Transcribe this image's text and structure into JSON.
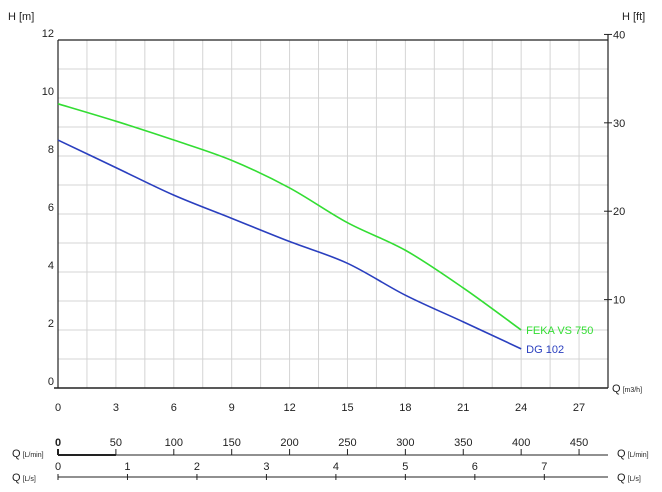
{
  "chart_data": {
    "type": "line",
    "title": "",
    "ylabel_left": "H [m]",
    "ylabel_right": "H [ft]",
    "xlabel_main": "Q",
    "xlabel_main_unit": "[m3/h]",
    "xlabel_lmin": "Q",
    "xlabel_lmin_unit": "[L/min]",
    "xlabel_ls": "Q",
    "xlabel_ls_unit": "[L/s]",
    "xlim": [
      0,
      28.5
    ],
    "ylim": [
      0,
      12
    ],
    "grid": true,
    "x_ticks": [
      "0",
      "3",
      "6",
      "9",
      "12",
      "15",
      "18",
      "21",
      "24",
      "27"
    ],
    "y_ticks": [
      "0",
      "2",
      "4",
      "6",
      "8",
      "10",
      "12"
    ],
    "y_right_ticks": [
      "10",
      "20",
      "30",
      "40"
    ],
    "lmin_ticks": [
      "0",
      "50",
      "100",
      "150",
      "200",
      "250",
      "300",
      "350",
      "400",
      "450"
    ],
    "ls_ticks": [
      "0",
      "1",
      "2",
      "3",
      "4",
      "5",
      "6",
      "7"
    ],
    "series": [
      {
        "name": "FEKA VS 750",
        "color": "#33dd33",
        "x": [
          0,
          3,
          6,
          9,
          12,
          15,
          18,
          21,
          24
        ],
        "y": [
          9.8,
          9.2,
          8.55,
          7.85,
          6.9,
          5.7,
          4.75,
          3.45,
          2.0
        ]
      },
      {
        "name": "DG 102",
        "color": "#2a3fbf",
        "x": [
          0,
          3,
          6,
          9,
          12,
          15,
          18,
          21,
          24
        ],
        "y": [
          8.55,
          7.6,
          6.65,
          5.85,
          5.05,
          4.3,
          3.2,
          2.28,
          1.35
        ]
      }
    ]
  }
}
